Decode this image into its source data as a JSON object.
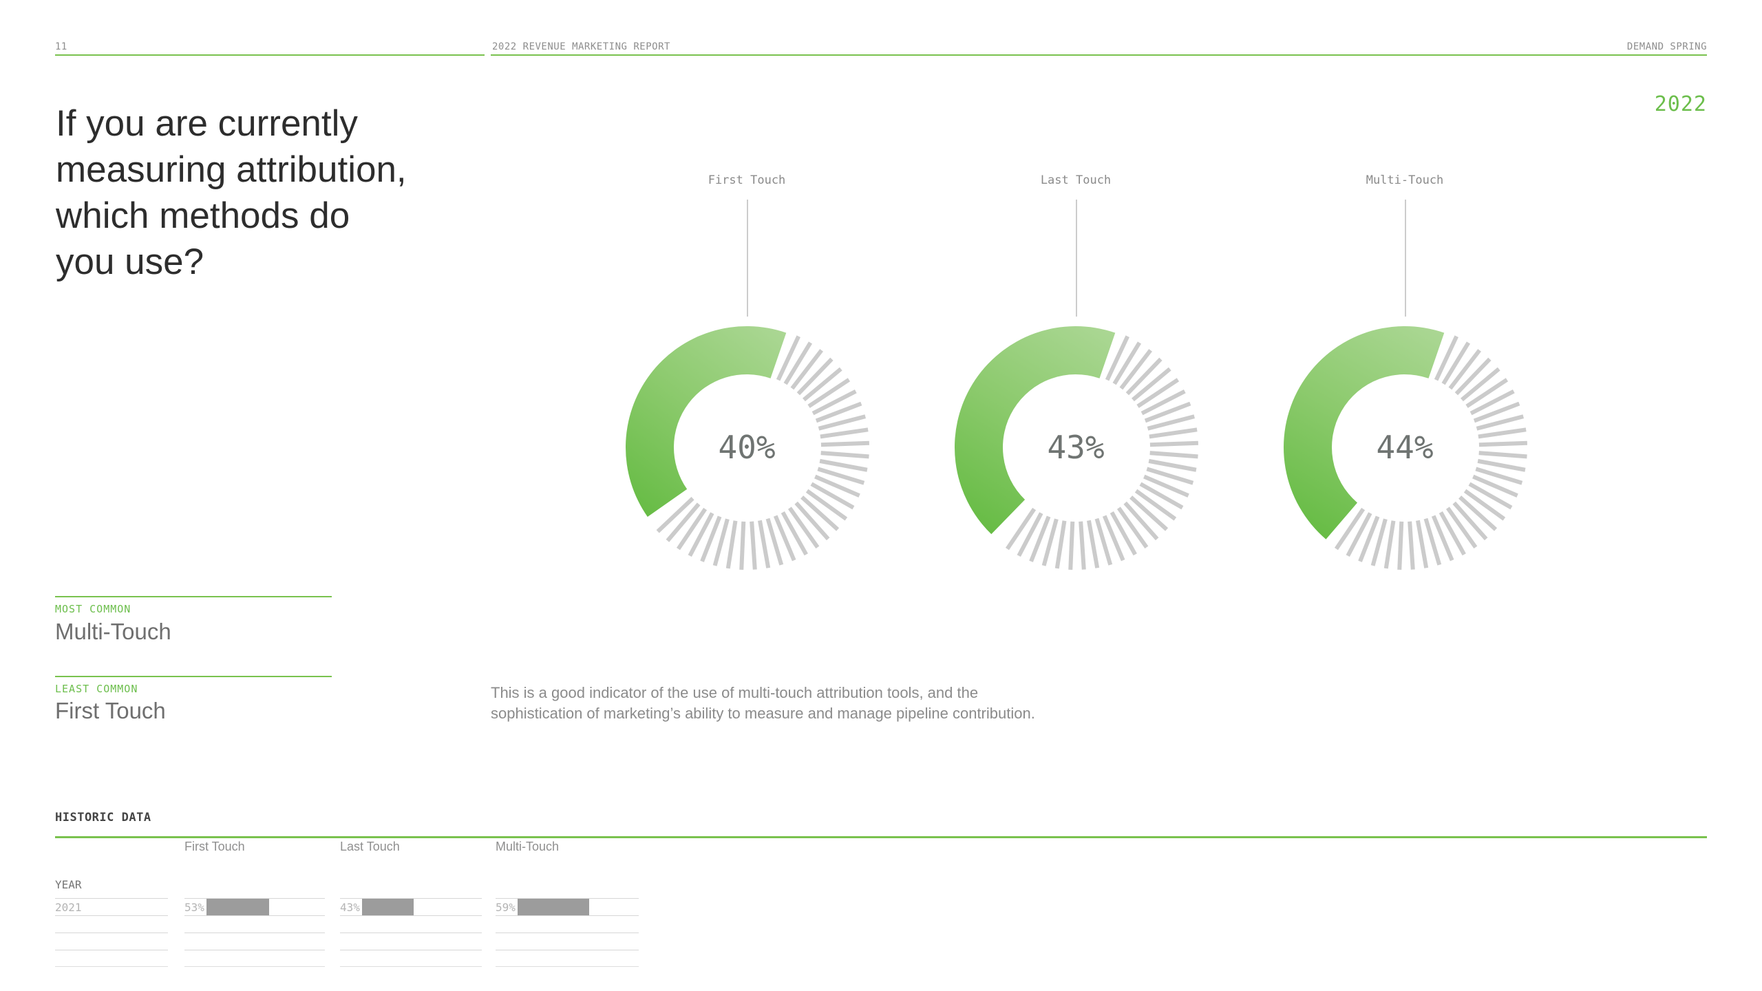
{
  "page": {
    "number": "11",
    "report_title": "2022 REVENUE MARKETING REPORT",
    "brand": "DEMAND SPRING",
    "year_badge": "2022"
  },
  "question": {
    "lines": [
      "If you are currently",
      "measuring attribution,",
      "which methods do",
      "you use?"
    ]
  },
  "gauges": [
    {
      "label": "First Touch",
      "value": 40,
      "display": "40%"
    },
    {
      "label": "Last Touch",
      "value": 43,
      "display": "43%"
    },
    {
      "label": "Multi-Touch",
      "value": 44,
      "display": "44%"
    }
  ],
  "summary": {
    "most_common_label": "MOST COMMON",
    "most_common_value": "Multi-Touch",
    "least_common_label": "LEAST COMMON",
    "least_common_value": "First Touch"
  },
  "note_lines": [
    "This is a good indicator of the use of multi-touch attribution tools, and the",
    "sophistication of marketing’s ability to measure and manage pipeline contribution."
  ],
  "historic": {
    "title": "HISTORIC DATA",
    "year_label": "YEAR",
    "columns": [
      "First Touch",
      "Last Touch",
      "Multi-Touch"
    ],
    "rows": [
      {
        "year": "2021",
        "displays": [
          "53%",
          "43%",
          "59%"
        ],
        "values": [
          53,
          43,
          59
        ]
      }
    ],
    "empty_rows": 3
  },
  "colors": {
    "accent_green": "#6cbe4c",
    "line_green": "#79c24e",
    "arc_gradient": [
      "#abd794",
      "#8cca6d",
      "#67bc45"
    ],
    "tick_gray": "#cbcbcb",
    "bar_gray": "#9c9c9c"
  },
  "chart_data": [
    {
      "type": "pie",
      "subtype": "donut-gauge-trio",
      "title": "Attribution methods currently used (2022)",
      "categories": [
        "First Touch",
        "Last Touch",
        "Multi-Touch"
      ],
      "values": [
        40,
        43,
        44
      ],
      "unit": "%"
    },
    {
      "type": "table",
      "title": "HISTORIC DATA",
      "columns": [
        "YEAR",
        "First Touch",
        "Last Touch",
        "Multi-Touch"
      ],
      "rows": [
        [
          "2021",
          "53%",
          "43%",
          "59%"
        ]
      ]
    }
  ]
}
